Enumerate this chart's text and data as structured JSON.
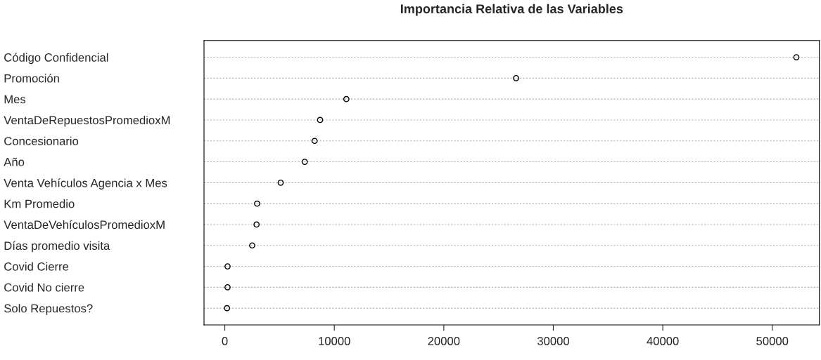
{
  "chart_data": {
    "type": "scatter",
    "title": "Importancia Relativa de las Variables",
    "orientation": "horizontal",
    "categories": [
      "Código Confidencial",
      "Promoción",
      "Mes",
      "VentaDeRepuestosPromedioxM",
      "Concesionario",
      "Año",
      "Venta Vehículos Agencia x Mes",
      "Km Promedio",
      "VentaDeVehículosPromedioxM",
      "Días promedio visita",
      "Covid Cierre",
      "Covid No cierre",
      "Solo Repuestos?"
    ],
    "values": [
      52200,
      26600,
      11100,
      8700,
      8200,
      7300,
      5100,
      2950,
      2900,
      2500,
      250,
      250,
      200
    ],
    "color": "#000000",
    "marker": "circle",
    "grid": "y",
    "xlim": [
      -1900,
      54300
    ],
    "xticks": [
      0,
      10000,
      20000,
      30000,
      40000,
      50000
    ]
  }
}
